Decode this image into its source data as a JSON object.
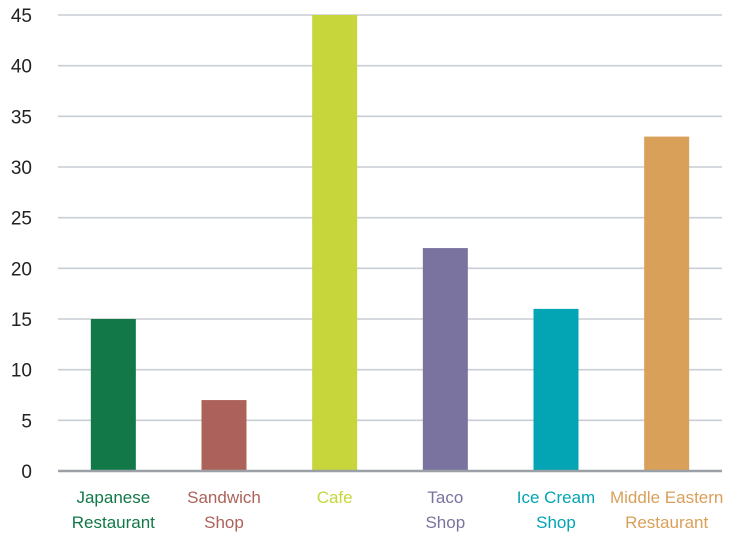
{
  "chart_data": {
    "type": "bar",
    "title": "",
    "xlabel": "",
    "ylabel": "",
    "ylim": [
      0,
      45
    ],
    "yticks": [
      0,
      5,
      10,
      15,
      20,
      25,
      30,
      35,
      40,
      45
    ],
    "grid": true,
    "legend": "none",
    "categories": [
      [
        "Japanese",
        "Restaurant"
      ],
      [
        "Sandwich",
        "Shop"
      ],
      [
        "Cafe"
      ],
      [
        "Taco",
        "Shop"
      ],
      [
        "Ice Cream",
        "Shop"
      ],
      [
        "Middle Eastern",
        "Restaurant"
      ]
    ],
    "values": [
      15,
      7,
      45,
      22,
      16,
      33
    ],
    "colors": [
      "#127848",
      "#ac625a",
      "#c6d63b",
      "#7b739f",
      "#03a4b4",
      "#d9a05a"
    ],
    "grid_color": "#c9cdd4",
    "axis_color": "#9aa0a6"
  }
}
